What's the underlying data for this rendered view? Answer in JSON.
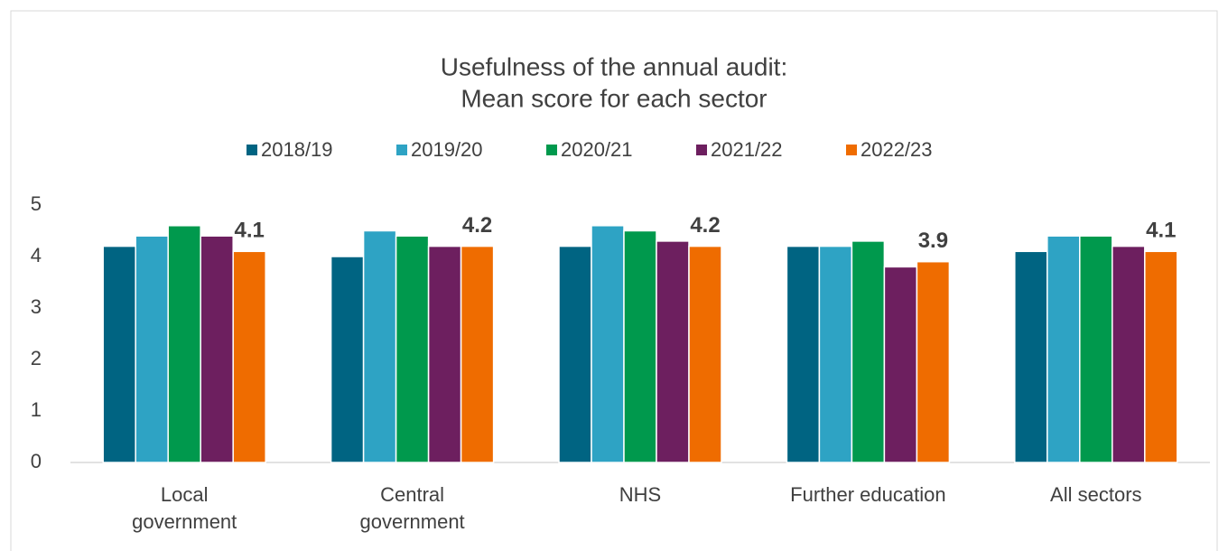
{
  "chart_data": {
    "type": "bar",
    "title": [
      "Usefulness of the annual audit:",
      "Mean score for each sector"
    ],
    "categories": [
      [
        "Local",
        "government"
      ],
      [
        "Central",
        "government"
      ],
      [
        "NHS"
      ],
      [
        "Further education"
      ],
      [
        "All sectors"
      ]
    ],
    "series": [
      {
        "name": "2018/19",
        "color": "#006482",
        "values": [
          4.2,
          4.0,
          4.2,
          4.2,
          4.1
        ]
      },
      {
        "name": "2019/20",
        "color": "#2ea3c4",
        "values": [
          4.4,
          4.5,
          4.6,
          4.2,
          4.4
        ]
      },
      {
        "name": "2020/21",
        "color": "#00994d",
        "values": [
          4.6,
          4.4,
          4.5,
          4.3,
          4.4
        ]
      },
      {
        "name": "2021/22",
        "color": "#6d1f5f",
        "values": [
          4.4,
          4.2,
          4.3,
          3.8,
          4.2
        ]
      },
      {
        "name": "2022/23",
        "color": "#ef6c00",
        "values": [
          4.1,
          4.2,
          4.2,
          3.9,
          4.1
        ],
        "data_labels": true
      }
    ],
    "ylim": [
      0,
      5
    ],
    "yticks": [
      0,
      1,
      2,
      3,
      4,
      5
    ],
    "grid": false,
    "legend": "top"
  }
}
